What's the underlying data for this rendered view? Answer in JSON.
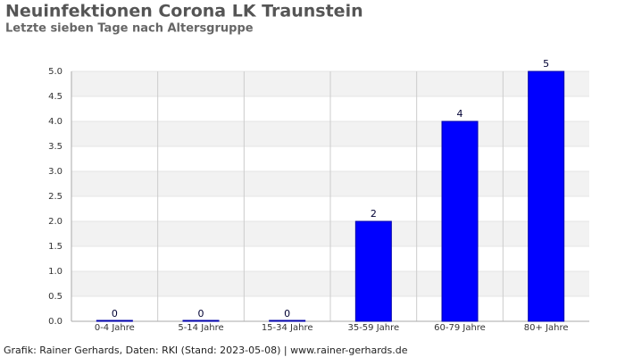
{
  "chart_data": {
    "type": "bar",
    "title": "Neuinfektionen Corona LK Traunstein",
    "subtitle": "Letzte sieben Tage nach Altersgruppe",
    "categories": [
      "0-4 Jahre",
      "5-14 Jahre",
      "15-34 Jahre",
      "35-59 Jahre",
      "60-79 Jahre",
      "80+ Jahre"
    ],
    "values": [
      0,
      0,
      0,
      2,
      4,
      5
    ],
    "color": "#0000ff",
    "ylim": [
      0,
      5
    ],
    "yticks": [
      {
        "value": 0,
        "label": "0.0"
      },
      0.5,
      {
        "value": 1,
        "label": "1.0"
      },
      1.5,
      {
        "value": 2,
        "label": "2.0"
      },
      2.5,
      {
        "value": 3,
        "label": "3.0"
      },
      3.5,
      {
        "value": 4,
        "label": "4.0"
      },
      4.5,
      {
        "value": 5,
        "label": "5.0"
      }
    ],
    "grid": true,
    "footer": "Grafik: Rainer Gerhards, Daten: RKI (Stand: 2023-05-08) | www.rainer-gerhards.de"
  }
}
